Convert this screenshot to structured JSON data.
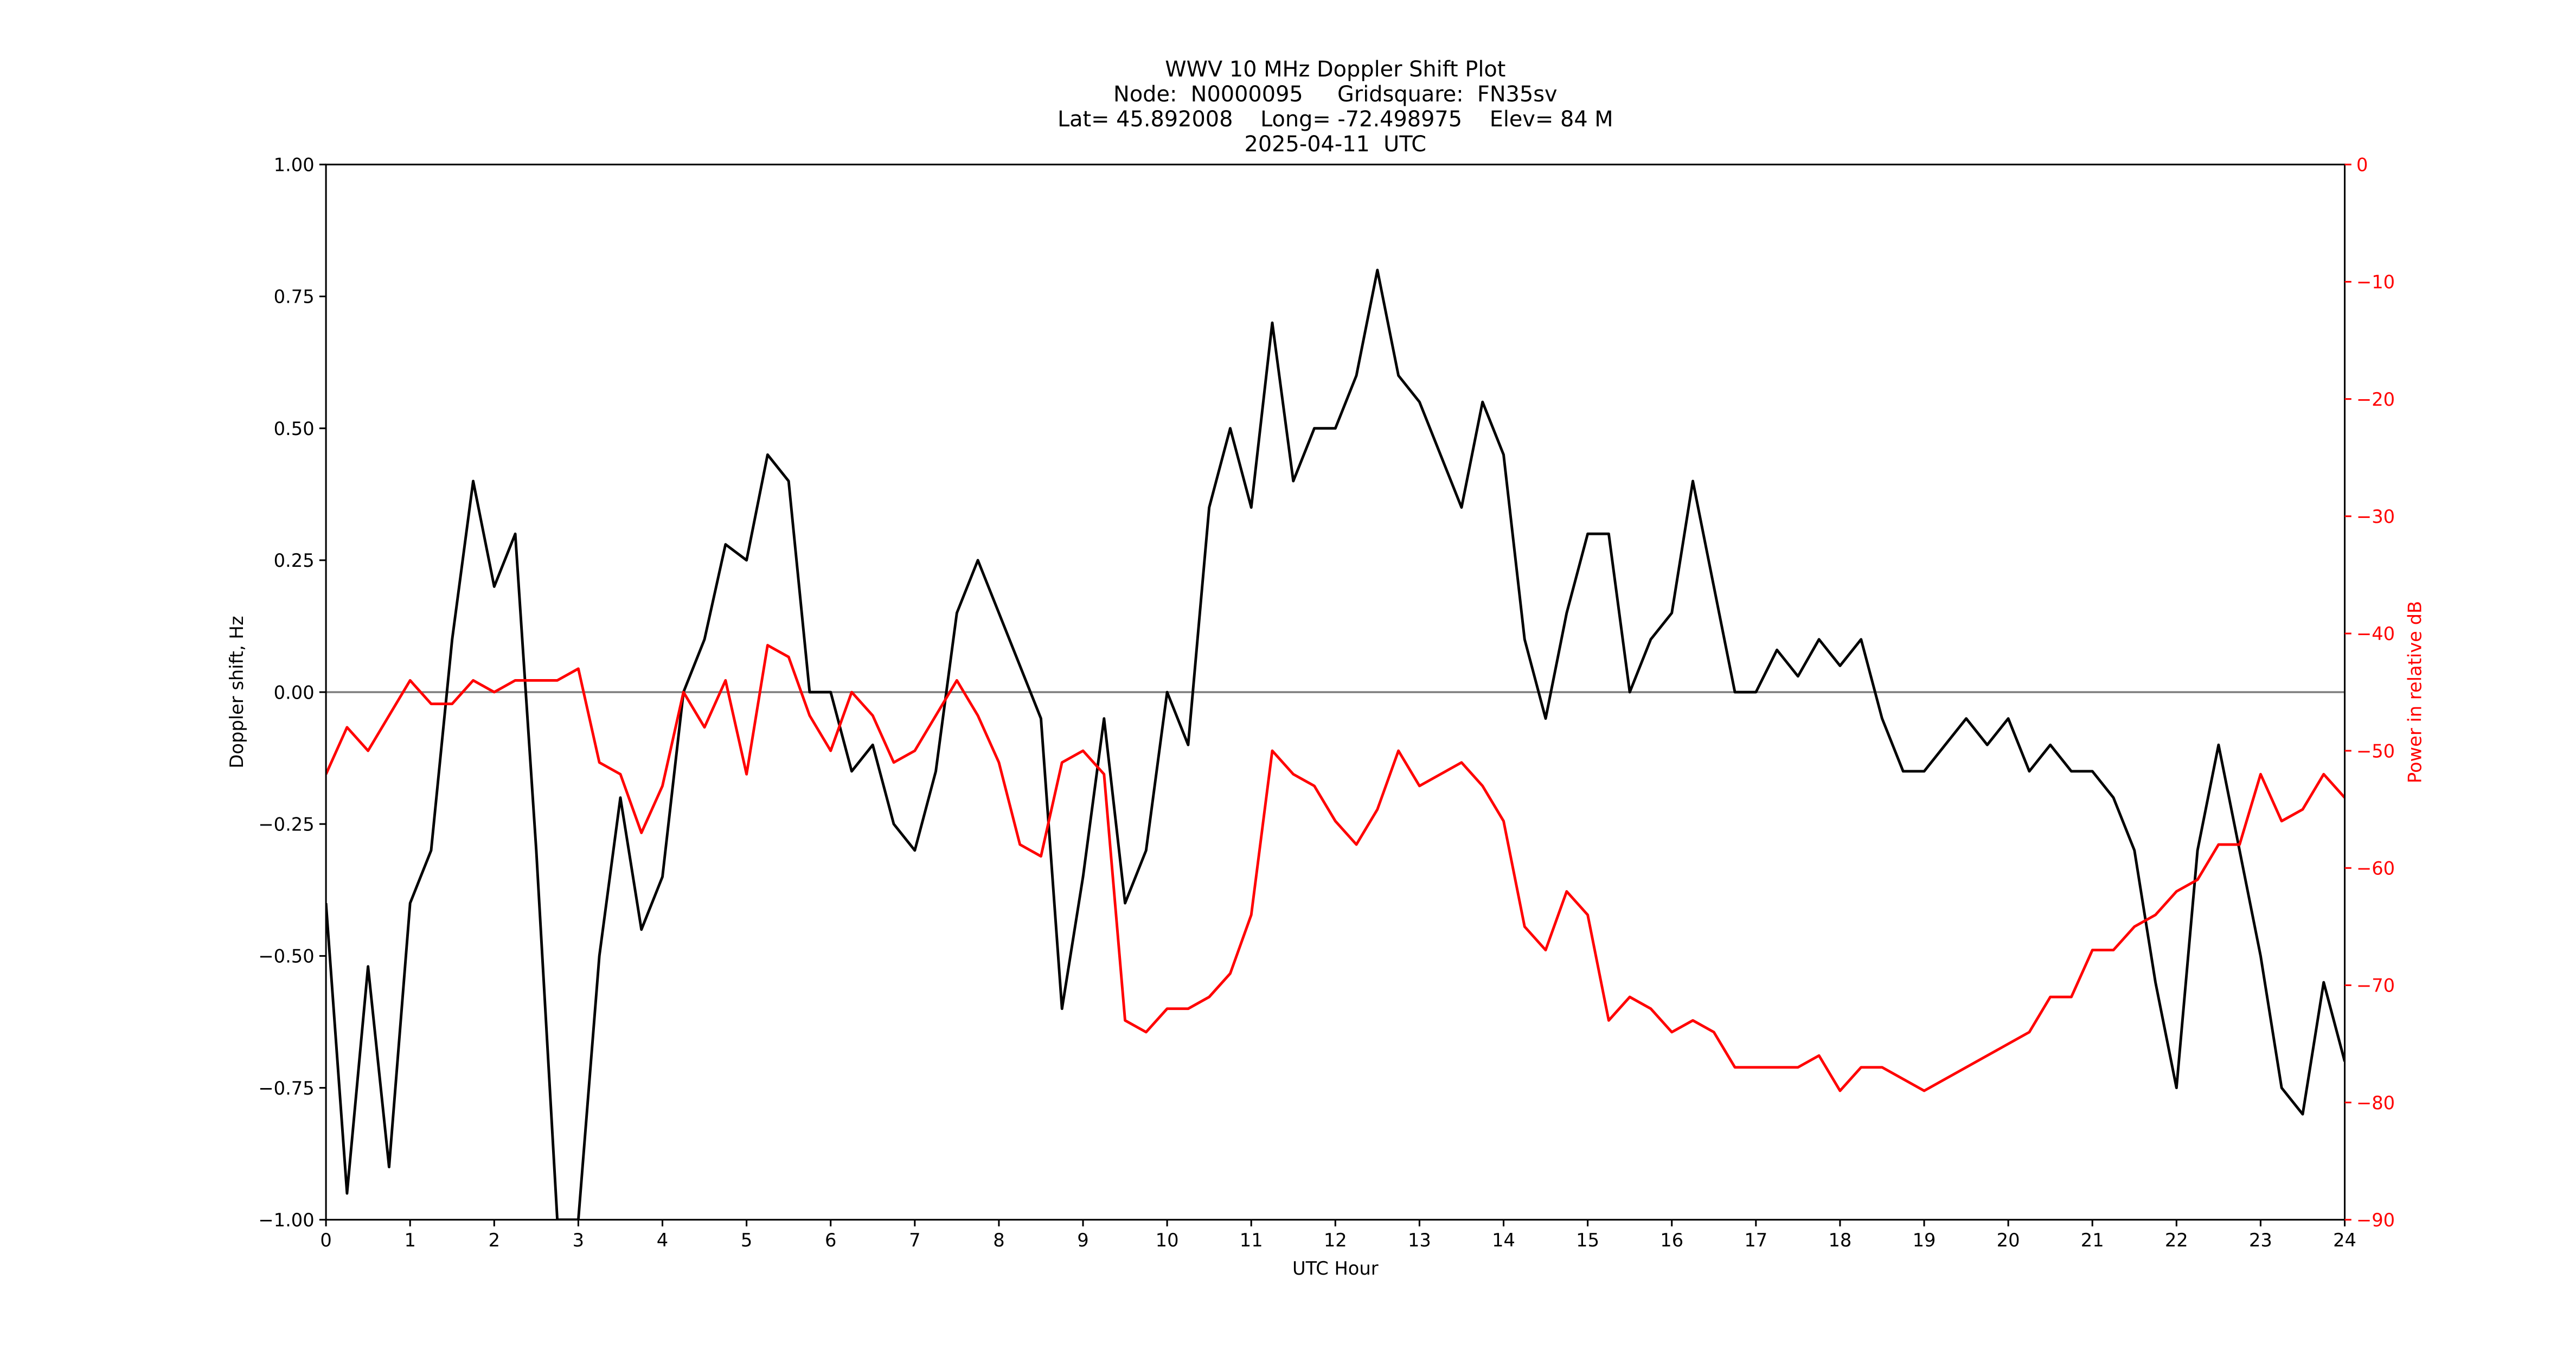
{
  "chart_data": {
    "type": "line",
    "title": [
      "WWV 10 MHz Doppler Shift Plot",
      "Node:  N0000095     Gridsquare:  FN35sv",
      "Lat= 45.892008    Long= -72.498975    Elev= 84 M",
      "2025-04-11  UTC"
    ],
    "xlabel": "UTC Hour",
    "ylabel": "Doppler shift, Hz",
    "y2label": "Power in relative dB",
    "y2color": "#ff0000",
    "x": [
      0,
      0.25,
      0.5,
      0.75,
      1,
      1.25,
      1.5,
      1.75,
      2,
      2.25,
      2.5,
      2.75,
      3,
      3.25,
      3.5,
      3.75,
      4,
      4.25,
      4.5,
      4.75,
      5,
      5.25,
      5.5,
      5.75,
      6,
      6.25,
      6.5,
      6.75,
      7,
      7.25,
      7.5,
      7.75,
      8,
      8.25,
      8.5,
      8.75,
      9,
      9.25,
      9.5,
      9.75,
      10,
      10.25,
      10.5,
      10.75,
      11,
      11.25,
      11.5,
      11.75,
      12,
      12.25,
      12.5,
      12.75,
      13,
      13.25,
      13.5,
      13.75,
      14,
      14.25,
      14.5,
      14.75,
      15,
      15.25,
      15.5,
      15.75,
      16,
      16.25,
      16.5,
      16.75,
      17,
      17.25,
      17.5,
      17.75,
      18,
      18.25,
      18.5,
      18.75,
      19,
      19.25,
      19.5,
      19.75,
      20,
      20.25,
      20.5,
      20.75,
      21,
      21.25,
      21.5,
      21.75,
      22,
      22.25,
      22.5,
      22.75,
      23,
      23.25,
      23.5,
      23.75,
      24
    ],
    "series": [
      {
        "color": "#000000",
        "axis": "y",
        "values": [
          -0.4,
          -0.95,
          -0.52,
          -0.9,
          -0.4,
          -0.3,
          0.1,
          0.4,
          0.2,
          0.3,
          -0.3,
          -1.0,
          -1.0,
          -0.5,
          -0.2,
          -0.45,
          -0.35,
          0.0,
          0.1,
          0.28,
          0.25,
          0.45,
          0.4,
          0.0,
          0.0,
          -0.15,
          -0.1,
          -0.25,
          -0.3,
          -0.15,
          0.15,
          0.25,
          0.15,
          0.05,
          -0.05,
          -0.6,
          -0.35,
          -0.05,
          -0.4,
          -0.3,
          0.0,
          -0.1,
          0.35,
          0.5,
          0.35,
          0.7,
          0.4,
          0.5,
          0.5,
          0.6,
          0.8,
          0.6,
          0.55,
          0.45,
          0.35,
          0.55,
          0.45,
          0.1,
          -0.05,
          0.15,
          0.3,
          0.3,
          0.0,
          0.1,
          0.15,
          0.4,
          0.2,
          0.0,
          0.0,
          0.08,
          0.03,
          0.1,
          0.05,
          0.1,
          -0.05,
          -0.15,
          -0.15,
          -0.1,
          -0.05,
          -0.1,
          -0.05,
          -0.15,
          -0.1,
          -0.15,
          -0.15,
          -0.2,
          -0.3,
          -0.55,
          -0.75,
          -0.3,
          -0.1,
          -0.3,
          -0.5,
          -0.75,
          -0.8,
          -0.55,
          -0.7
        ]
      },
      {
        "color": "#ff0000",
        "axis": "y2",
        "values": [
          -52,
          -48,
          -50,
          -47,
          -44,
          -46,
          -46,
          -44,
          -45,
          -44,
          -44,
          -44,
          -43,
          -51,
          -52,
          -57,
          -53,
          -45,
          -48,
          -44,
          -52,
          -41,
          -42,
          -47,
          -50,
          -45,
          -47,
          -51,
          -50,
          -47,
          -44,
          -47,
          -51,
          -58,
          -59,
          -51,
          -50,
          -52,
          -73,
          -74,
          -72,
          -72,
          -71,
          -69,
          -64,
          -50,
          -52,
          -53,
          -56,
          -58,
          -55,
          -50,
          -53,
          -52,
          -51,
          -53,
          -56,
          -65,
          -67,
          -62,
          -64,
          -73,
          -71,
          -72,
          -74,
          -73,
          -74,
          -77,
          -77,
          -77,
          -77,
          -76,
          -79,
          -77,
          -77,
          -78,
          -79,
          -78,
          -77,
          -76,
          -75,
          -74,
          -71,
          -71,
          -67,
          -67,
          -65,
          -64,
          -62,
          -61,
          -58,
          -58,
          -52,
          -56,
          -55,
          -52,
          -54
        ]
      }
    ],
    "hline": {
      "y": 0,
      "color": "#808080"
    },
    "xlim": [
      0,
      24
    ],
    "xticks": [
      0,
      1,
      2,
      3,
      4,
      5,
      6,
      7,
      8,
      9,
      10,
      11,
      12,
      13,
      14,
      15,
      16,
      17,
      18,
      19,
      20,
      21,
      22,
      23,
      24
    ],
    "ylim": [
      -1,
      1
    ],
    "yticks": [
      {
        "value": -1,
        "label": "−1.00"
      },
      {
        "value": -0.75,
        "label": "−0.75"
      },
      {
        "value": -0.5,
        "label": "−0.50"
      },
      {
        "value": -0.25,
        "label": "−0.25"
      },
      {
        "value": 0,
        "label": "0.00"
      },
      {
        "value": 0.25,
        "label": "0.25"
      },
      {
        "value": 0.5,
        "label": "0.50"
      },
      {
        "value": 0.75,
        "label": "0.75"
      },
      {
        "value": 1,
        "label": "1.00"
      }
    ],
    "y2lim": [
      -90,
      0
    ],
    "y2ticks": [
      {
        "value": -90,
        "label": "−90"
      },
      {
        "value": -80,
        "label": "−80"
      },
      {
        "value": -70,
        "label": "−70"
      },
      {
        "value": -60,
        "label": "−60"
      },
      {
        "value": -50,
        "label": "−50"
      },
      {
        "value": -40,
        "label": "−40"
      },
      {
        "value": -30,
        "label": "−30"
      },
      {
        "value": -20,
        "label": "−20"
      },
      {
        "value": -10,
        "label": "−10"
      },
      0
    ]
  }
}
